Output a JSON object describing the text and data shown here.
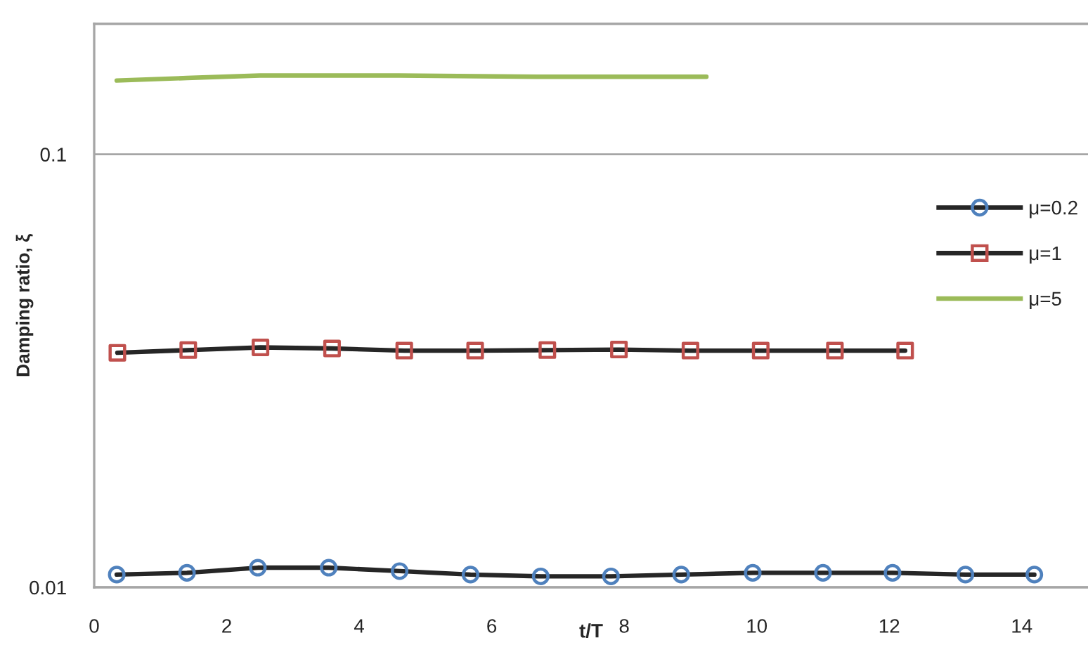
{
  "chart_data": {
    "type": "line",
    "xlabel": "t/T",
    "ylabel": "Damping ratio, ξ",
    "xlim": [
      0,
      15
    ],
    "xticks": [
      0,
      2,
      4,
      6,
      8,
      10,
      12,
      14
    ],
    "ylim": [
      0.01,
      0.2
    ],
    "yticks": [
      0.01,
      0.1
    ],
    "log": "y",
    "grid": "y",
    "legend": "right",
    "series": [
      {
        "name": "μ=0.2",
        "color": "#262626",
        "marker": "circle",
        "colors": [
          "#4f81bd",
          "#4f81bd",
          "#4f81bd",
          "#4f81bd",
          "#4f81bd",
          "#4f81bd",
          "#4f81bd",
          "#4f81bd",
          "#4f81bd",
          "#4f81bd",
          "#4f81bd",
          "#4f81bd",
          "#4f81bd",
          "#4f81bd"
        ],
        "x": [
          0.34,
          1.4,
          2.47,
          3.54,
          4.61,
          5.68,
          6.74,
          7.8,
          8.86,
          9.94,
          11.0,
          12.05,
          13.15,
          14.19
        ],
        "values": [
          0.0107,
          0.0108,
          0.0111,
          0.0111,
          0.0109,
          0.0107,
          0.0106,
          0.0106,
          0.0107,
          0.0108,
          0.0108,
          0.0108,
          0.0107,
          0.0107
        ]
      },
      {
        "name": "μ=1",
        "color": "#262626",
        "marker": "square",
        "colors": [
          "#c0504d",
          "#c0504d",
          "#c0504d",
          "#c0504d",
          "#c0504d",
          "#c0504d",
          "#c0504d",
          "#c0504d",
          "#c0504d",
          "#c0504d",
          "#c0504d",
          "#c0504d"
        ],
        "x": [
          0.35,
          1.42,
          2.51,
          3.59,
          4.68,
          5.75,
          6.84,
          7.92,
          9.0,
          10.06,
          11.18,
          12.24
        ],
        "values": [
          0.0348,
          0.0353,
          0.0358,
          0.0356,
          0.0352,
          0.0352,
          0.0353,
          0.0354,
          0.0352,
          0.0352,
          0.0352,
          0.0352
        ]
      },
      {
        "name": "μ=5",
        "color": "#9bbb59",
        "marker": "none",
        "x": [
          0.34,
          1.4,
          2.5,
          4.6,
          6.7,
          9.24
        ],
        "values": [
          0.148,
          0.15,
          0.152,
          0.152,
          0.151,
          0.151
        ]
      }
    ]
  }
}
